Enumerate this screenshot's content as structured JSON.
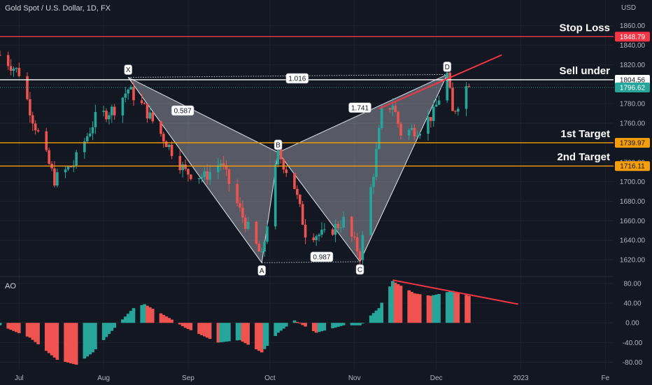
{
  "header": {
    "title": "Gold Spot / U.S. Dollar, 1D, FX",
    "currency": "USD"
  },
  "ao_label": "AO",
  "colors": {
    "bg": "#131722",
    "grid": "#1e222d",
    "up": "#26a69a",
    "down": "#ef5350",
    "red_line": "#f23645",
    "orange": "#f59e0b",
    "white": "#ffffff",
    "text": "#d1d4dc"
  },
  "chart_data": [
    {
      "type": "candlestick",
      "title": "Gold Spot / U.S. Dollar, 1D, FX",
      "ylim": [
        1605,
        1872
      ],
      "y_ticks": [
        1620,
        1640,
        1660,
        1680,
        1700,
        1720,
        1740,
        1760,
        1780,
        1800,
        1820,
        1840,
        1860
      ],
      "x_start": "2022-06-24",
      "x_end": "2023-02-04",
      "x_ticks": [
        {
          "label": "Jul",
          "date": "2022-07-01"
        },
        {
          "label": "Aug",
          "date": "2022-08-01"
        },
        {
          "label": "Sep",
          "date": "2022-09-01"
        },
        {
          "label": "Oct",
          "date": "2022-10-01"
        },
        {
          "label": "Nov",
          "date": "2022-11-01"
        },
        {
          "label": "Dec",
          "date": "2022-12-01"
        },
        {
          "label": "2023",
          "date": "2023-01-01"
        },
        {
          "label": "Fe",
          "date": "2023-02-01"
        }
      ],
      "price_anchors": [
        [
          "2022-06-24",
          1830
        ],
        [
          "2022-07-01",
          1812
        ],
        [
          "2022-07-06",
          1765
        ],
        [
          "2022-07-14",
          1702
        ],
        [
          "2022-07-21",
          1718
        ],
        [
          "2022-07-29",
          1765
        ],
        [
          "2022-08-05",
          1775
        ],
        [
          "2022-08-10",
          1795
        ],
        [
          "2022-08-16",
          1775
        ],
        [
          "2022-08-23",
          1745
        ],
        [
          "2022-08-31",
          1710
        ],
        [
          "2022-09-07",
          1705
        ],
        [
          "2022-09-13",
          1720
        ],
        [
          "2022-09-20",
          1670
        ],
        [
          "2022-09-28",
          1622
        ],
        [
          "2022-10-04",
          1730
        ],
        [
          "2022-10-10",
          1695
        ],
        [
          "2022-10-14",
          1648
        ],
        [
          "2022-10-21",
          1645
        ],
        [
          "2022-10-28",
          1660
        ],
        [
          "2022-11-03",
          1625
        ],
        [
          "2022-11-08",
          1710
        ],
        [
          "2022-11-11",
          1770
        ],
        [
          "2022-11-15",
          1780
        ],
        [
          "2022-11-18",
          1750
        ],
        [
          "2022-11-25",
          1755
        ],
        [
          "2022-11-30",
          1770
        ],
        [
          "2022-12-05",
          1810
        ],
        [
          "2022-12-07",
          1770
        ],
        [
          "2022-12-13",
          1803
        ]
      ],
      "horizontal_levels": [
        {
          "name": "Stop Loss",
          "price": 1848.79,
          "color": "#f23645"
        },
        {
          "name": "Sell under",
          "price": 1804.56,
          "color": "#ffffff"
        },
        {
          "name": "1st Target",
          "price": 1739.97,
          "color": "#f59e0b"
        },
        {
          "name": "2nd Target",
          "price": 1716.11,
          "color": "#f59e0b"
        }
      ],
      "current_price": 1796.62,
      "pattern_points": [
        {
          "label": "X",
          "date": "2022-08-10",
          "price": 1807
        },
        {
          "label": "A",
          "date": "2022-09-28",
          "price": 1617
        },
        {
          "label": "B",
          "date": "2022-10-04",
          "price": 1730
        },
        {
          "label": "C",
          "date": "2022-11-03",
          "price": 1618
        },
        {
          "label": "D",
          "date": "2022-12-05",
          "price": 1810
        }
      ],
      "ratios": [
        {
          "value": "0.587",
          "date": "2022-08-30",
          "price": 1773
        },
        {
          "value": "1.016",
          "date": "2022-10-11",
          "price": 1806
        },
        {
          "value": "0.987",
          "date": "2022-10-20",
          "price": 1623
        },
        {
          "value": "1.741",
          "date": "2022-11-03",
          "price": 1776
        }
      ],
      "trendline": {
        "from": {
          "date": "2022-11-10",
          "price": 1775
        },
        "to": {
          "date": "2022-12-25",
          "price": 1830
        }
      }
    },
    {
      "type": "histogram",
      "title": "AO",
      "ylim": [
        -95,
        90
      ],
      "y_ticks": [
        -80,
        -40,
        0,
        40,
        80
      ],
      "ao_anchors": [
        [
          "2022-06-24",
          -5
        ],
        [
          "2022-07-05",
          -30
        ],
        [
          "2022-07-15",
          -75
        ],
        [
          "2022-07-22",
          -85
        ],
        [
          "2022-07-28",
          -60
        ],
        [
          "2022-08-05",
          -10
        ],
        [
          "2022-08-12",
          30
        ],
        [
          "2022-08-16",
          38
        ],
        [
          "2022-08-25",
          10
        ],
        [
          "2022-08-31",
          -10
        ],
        [
          "2022-09-12",
          -40
        ],
        [
          "2022-09-20",
          -35
        ],
        [
          "2022-09-28",
          -60
        ],
        [
          "2022-10-04",
          -20
        ],
        [
          "2022-10-10",
          5
        ],
        [
          "2022-10-18",
          -20
        ],
        [
          "2022-10-28",
          -5
        ],
        [
          "2022-11-03",
          -5
        ],
        [
          "2022-11-10",
          30
        ],
        [
          "2022-11-15",
          85
        ],
        [
          "2022-11-23",
          60
        ],
        [
          "2022-11-29",
          55
        ],
        [
          "2022-12-07",
          65
        ],
        [
          "2022-12-13",
          55
        ]
      ],
      "trendline": {
        "from": {
          "date": "2022-11-15",
          "value": 87
        },
        "to": {
          "date": "2022-12-31",
          "value": 38
        }
      }
    }
  ]
}
